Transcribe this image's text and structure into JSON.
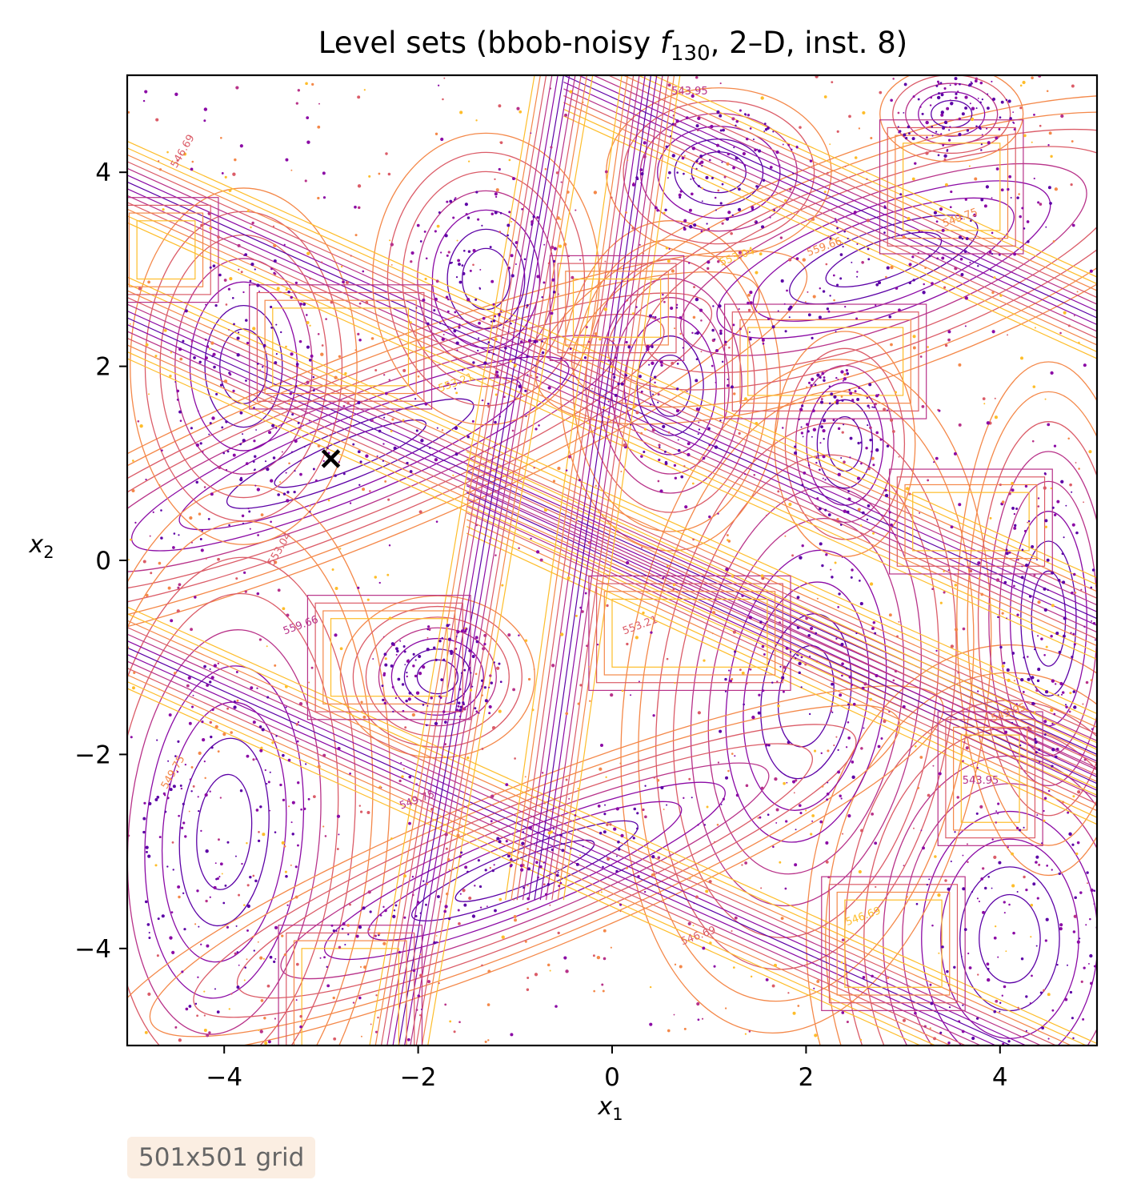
{
  "chart_data": {
    "type": "contour",
    "title_main": "Level sets (bbob-noisy ",
    "title_func": "f",
    "title_sub": "130",
    "title_rest": ", 2–D, inst. 8)",
    "xlabel_main": "x",
    "xlabel_sub": "1",
    "ylabel_main": "x",
    "ylabel_sub": "2",
    "xlim": [
      -5,
      5
    ],
    "ylim": [
      -5,
      5
    ],
    "xticks": [
      -4,
      -2,
      0,
      2,
      4
    ],
    "yticks": [
      -4,
      -2,
      0,
      2,
      4
    ],
    "xtick_labels": [
      "−4",
      "−2",
      "0",
      "2",
      "4"
    ],
    "ytick_labels": [
      "−4",
      "−2",
      "0",
      "2",
      "4"
    ],
    "grid": false,
    "colormap": "plasma",
    "contour_level_labels": [
      "543.95",
      "546.69",
      "549.75",
      "553.04",
      "559.66",
      "553.21"
    ],
    "optimum_marker": {
      "x": -2.9,
      "y": 1.05,
      "symbol": "×"
    },
    "annotation": "501x501 grid"
  },
  "colors": {
    "deep": "#5c01a6",
    "violet": "#8b0aa5",
    "magenta": "#b83289",
    "pink": "#db5c68",
    "orange": "#f48849",
    "yellow": "#febd2a",
    "marker": "#000000",
    "badge_bg": "#fbeee2",
    "badge_text": "#666666"
  }
}
